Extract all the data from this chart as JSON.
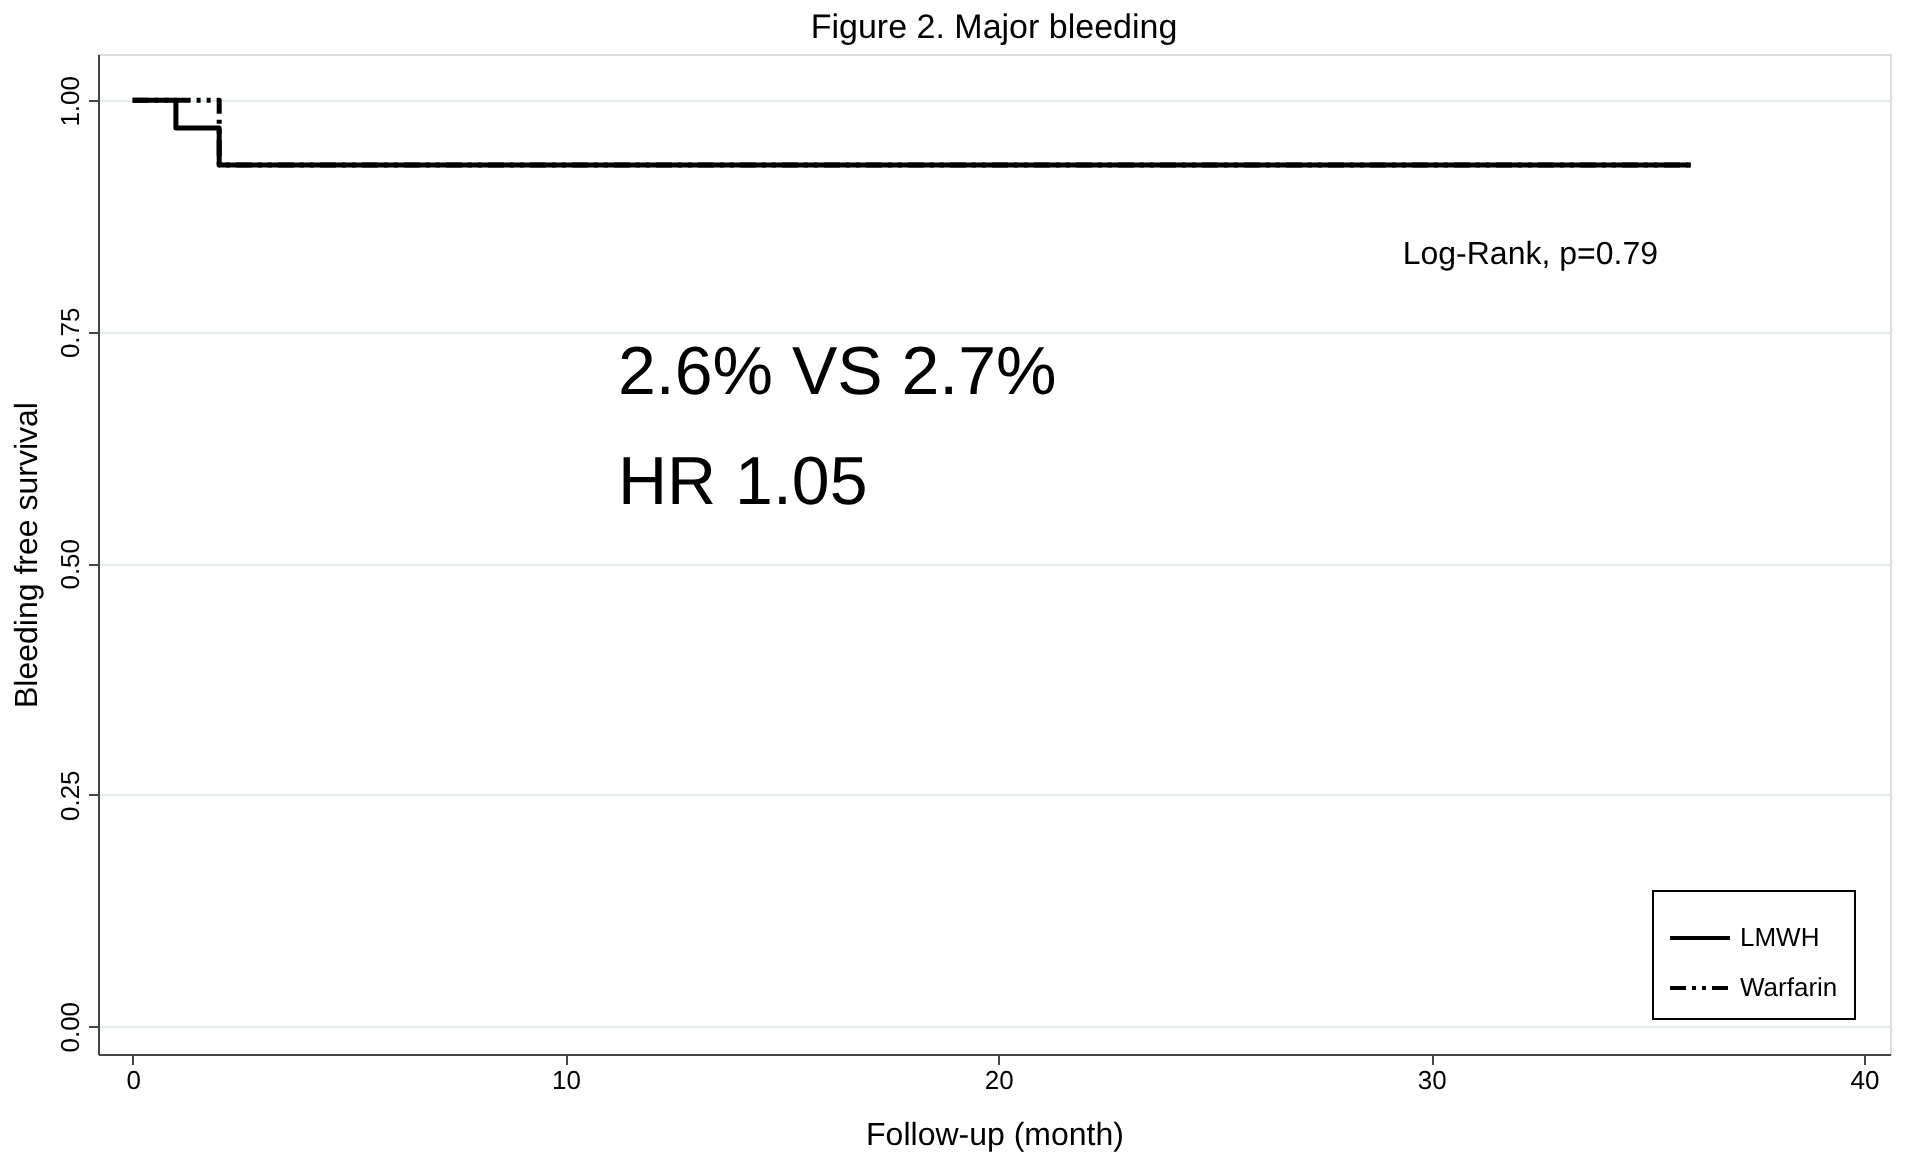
{
  "chart_data": {
    "type": "step",
    "title": "Figure 2. Major bleeding",
    "xlabel": "Follow-up (month)",
    "ylabel": "Bleeding free survival",
    "xlim": [
      -0.8,
      40.6
    ],
    "ylim": [
      -0.03,
      1.05
    ],
    "xticks": [
      0,
      10,
      20,
      30,
      40
    ],
    "yticks": [
      {
        "value": 0,
        "label": "0.00"
      },
      {
        "value": 0.25,
        "label": "0.25"
      },
      {
        "value": 0.5,
        "label": "0.50"
      },
      {
        "value": 0.75,
        "label": "0.75"
      },
      {
        "value": 1,
        "label": "1.00"
      }
    ],
    "grid": "y",
    "legend": "bottom right",
    "series": [
      {
        "name": "LMWH",
        "color": "#000000",
        "line_style": "solid",
        "x": [
          0,
          1,
          2,
          36
        ],
        "values": [
          1,
          0.97,
          0.93,
          0.93
        ]
      },
      {
        "name": "Warfarin",
        "color": "#000000",
        "line_style": "dashdot",
        "x": [
          0,
          2,
          36
        ],
        "values": [
          1,
          0.93,
          0.93
        ]
      }
    ],
    "annotations": [
      "Log-Rank, p=0.79",
      "2.6% VS 2.7%",
      "HR 1.05"
    ]
  }
}
